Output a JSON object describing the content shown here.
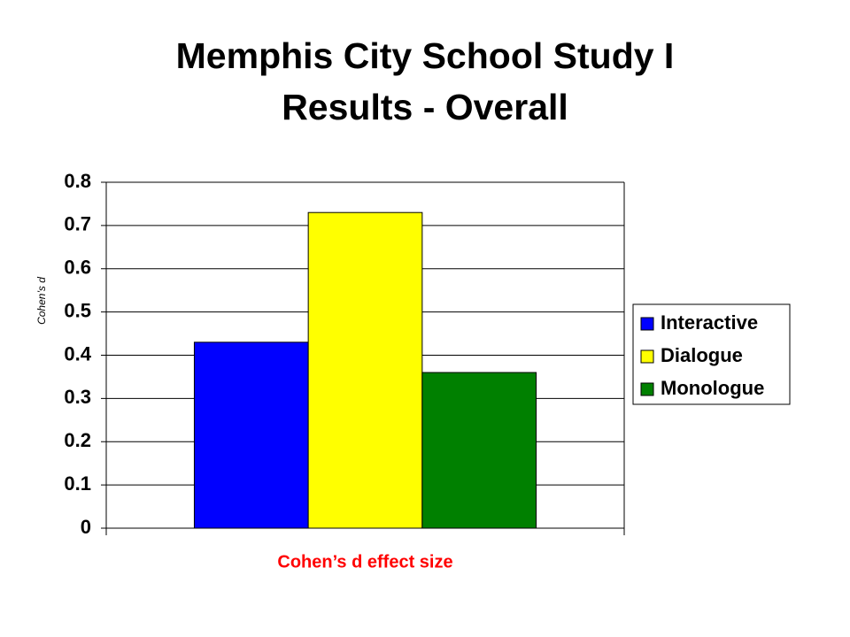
{
  "chart_data": {
    "type": "bar",
    "title": [
      "Memphis City School Study I",
      "Results - Overall"
    ],
    "y_label": "Cohen’s d",
    "categories": [
      "Cohen’s d effect size"
    ],
    "series": [
      {
        "name": "Interactive",
        "color": "#0000ff",
        "values": [
          0.43
        ]
      },
      {
        "name": "Dialogue",
        "color": "#ffff00",
        "values": [
          0.73
        ]
      },
      {
        "name": "Monologue",
        "color": "#008000",
        "values": [
          0.36
        ]
      }
    ],
    "ylim": [
      0,
      0.8
    ],
    "yticks": [
      0,
      0.1,
      0.2,
      0.3,
      0.4,
      0.5,
      0.6,
      0.7,
      0.8
    ],
    "grid": true,
    "legend": "right"
  }
}
